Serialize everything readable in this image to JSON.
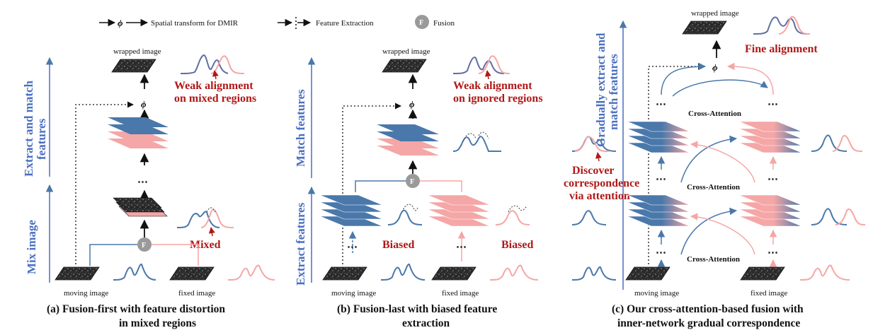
{
  "legend": {
    "phi_symbol": "ϕ",
    "spatial_transform": "Spatial transform for DMIR",
    "feature_extraction": "Feature Extraction",
    "fusion_symbol": "F",
    "fusion": "Fusion"
  },
  "common": {
    "wrapped_image": "wrapped image",
    "moving_image": "moving image",
    "fixed_image": "fixed image",
    "ellipsis": "⋯",
    "phi": "ϕ",
    "fusion_node": "F"
  },
  "panel_a": {
    "axis_top": [
      "Extract and match",
      "features"
    ],
    "axis_bottom": "Mix image",
    "weak_alignment": [
      "Weak alignment",
      "on mixed regions"
    ],
    "mixed": "Mixed",
    "caption": [
      "(a) Fusion-first with feature distortion",
      "in mixed regions"
    ]
  },
  "panel_b": {
    "axis_top": "Match features",
    "axis_bottom": "Extract features",
    "weak_alignment": [
      "Weak alignment",
      "on ignored regions"
    ],
    "biased_left": "Biased",
    "biased_right": "Biased",
    "caption": [
      "(b) Fusion-last with biased feature",
      "extraction"
    ]
  },
  "panel_c": {
    "axis": [
      "Gradually extract and",
      "match features"
    ],
    "fine_alignment": "Fine alignment",
    "discover": [
      "Discover",
      "correspondence",
      "via attention"
    ],
    "cross_attention": [
      "Cross-Attention",
      "Cross-Attention",
      "Cross-Attention"
    ],
    "caption": [
      "(c) Our cross-attention-based fusion with",
      "inner-network gradual correspondence"
    ]
  },
  "colors": {
    "blue": "#4a78aa",
    "pink": "#f5a6a6",
    "red_text": "#b01818",
    "axis_blue": "#4a6fc0",
    "fusion_gray": "#9a9a9a"
  }
}
